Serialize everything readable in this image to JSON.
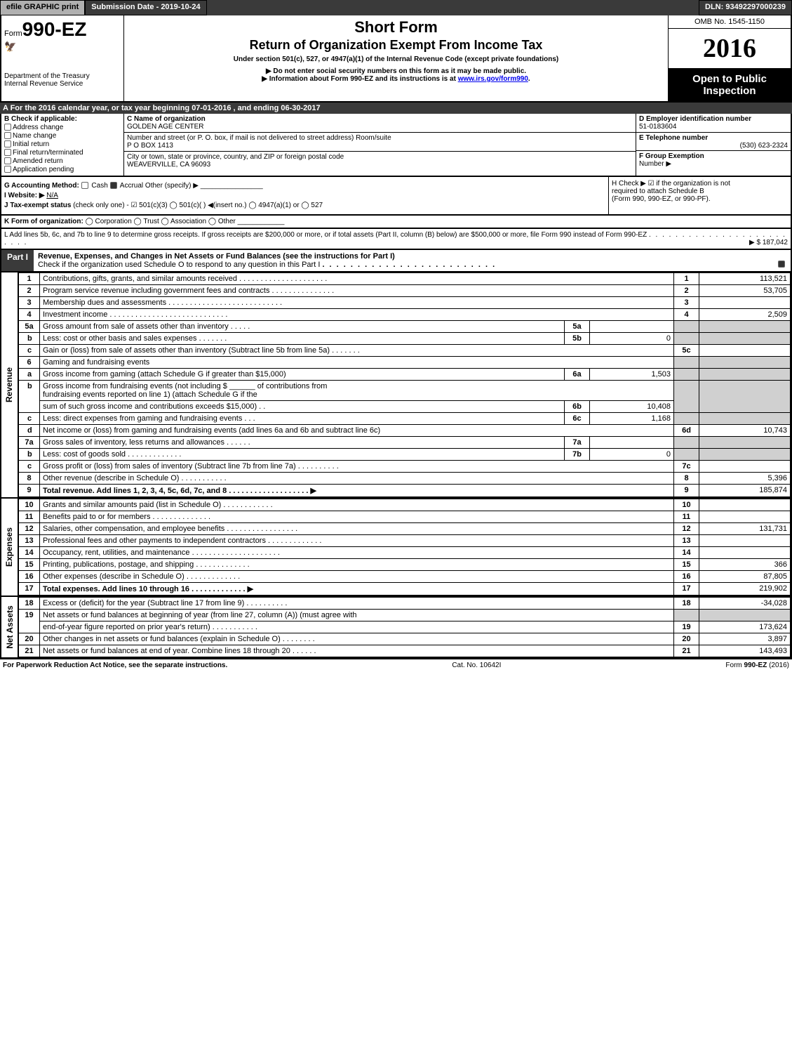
{
  "top": {
    "efile": "efile GRAPHIC print",
    "submission": "Submission Date - 2019-10-24",
    "dln": "DLN: 93492297000239"
  },
  "header": {
    "form_prefix": "Form",
    "form_no": "990-EZ",
    "dept1": "Department of the Treasury",
    "dept2": "Internal Revenue Service",
    "title1": "Short Form",
    "title2": "Return of Organization Exempt From Income Tax",
    "sub": "Under section 501(c), 527, or 4947(a)(1) of the Internal Revenue Code (except private foundations)",
    "note1": "▶ Do not enter social security numbers on this form as it may be made public.",
    "note2_pre": "▶ Information about Form 990-EZ and its instructions is at ",
    "note2_link": "www.irs.gov/form990",
    "omb": "OMB No. 1545-1150",
    "year": "2016",
    "open1": "Open to Public",
    "open2": "Inspection"
  },
  "sectionA": "A For the 2016 calendar year, or tax year beginning 07-01-2016 , and ending 06-30-2017",
  "B": {
    "label": "B Check if applicable:",
    "items": [
      "Address change",
      "Name change",
      "Initial return",
      "Final return/terminated",
      "Amended return",
      "Application pending"
    ]
  },
  "C": {
    "name_label": "C Name of organization",
    "name": "GOLDEN AGE CENTER",
    "street_label": "Number and street (or P. O. box, if mail is not delivered to street address)   Room/suite",
    "street": "P O BOX 1413",
    "city_label": "City or town, state or province, country, and ZIP or foreign postal code",
    "city": "WEAVERVILLE, CA  96093"
  },
  "D": {
    "label": "D Employer identification number",
    "value": "51-0183604"
  },
  "E": {
    "label": "E Telephone number",
    "value": "(530) 623-2324"
  },
  "F": {
    "label": "F Group Exemption",
    "label2": "Number ▶"
  },
  "G": {
    "label": "G Accounting Method:",
    "cash": "Cash",
    "accrual": "Accrual",
    "other": "Other (specify) ▶"
  },
  "I": {
    "label": "I Website: ▶",
    "value": "N/A"
  },
  "J": {
    "label": "J Tax-exempt status",
    "text": "(check only one) -  ☑ 501(c)(3)  ◯ 501(c)( ) ◀(insert no.)  ◯ 4947(a)(1) or  ◯ 527"
  },
  "H": {
    "line1": "H  Check ▶  ☑  if the organization is not",
    "line2": "required to attach Schedule B",
    "line3": "(Form 990, 990-EZ, or 990-PF)."
  },
  "K": {
    "label": "K Form of organization:",
    "text": " ◯ Corporation  ◯ Trust  ◯ Association  ◯ Other"
  },
  "L": {
    "text": "L Add lines 5b, 6c, and 7b to line 9 to determine gross receipts. If gross receipts are $200,000 or more, or if total assets (Part II, column (B) below) are $500,000 or more, file Form 990 instead of Form 990-EZ",
    "amount": "▶ $ 187,042"
  },
  "part1": {
    "tag": "Part I",
    "title": "Revenue, Expenses, and Changes in Net Assets or Fund Balances (see the instructions for Part I)",
    "sub": "Check if the organization used Schedule O to respond to any question in this Part I"
  },
  "sides": {
    "rev": "Revenue",
    "exp": "Expenses",
    "net": "Net Assets"
  },
  "lines": {
    "1": {
      "desc": "Contributions, gifts, grants, and similar amounts received . . . . . . . . . . . . . . . . . . . . .",
      "val": "113,521"
    },
    "2": {
      "desc": "Program service revenue including government fees and contracts . . . . . . . . . . . . . . .",
      "val": "53,705"
    },
    "3": {
      "desc": "Membership dues and assessments . . . . . . . . . . . . . . . . . . . . . . . . . . .",
      "val": ""
    },
    "4": {
      "desc": "Investment income . . . . . . . . . . . . . . . . . . . . . . . . . . . .",
      "val": "2,509"
    },
    "5a": {
      "desc": "Gross amount from sale of assets other than inventory . . . . .",
      "inval": ""
    },
    "5b": {
      "desc": "Less: cost or other basis and sales expenses . . . . . . .",
      "inval": "0"
    },
    "5c": {
      "desc": "Gain or (loss) from sale of assets other than inventory (Subtract line 5b from line 5a) . . . . . . .",
      "val": ""
    },
    "6": {
      "desc": "Gaming and fundraising events"
    },
    "6a": {
      "desc": "Gross income from gaming (attach Schedule G if greater than $15,000)",
      "inval": "1,503"
    },
    "6b": {
      "desc1": "Gross income from fundraising events (not including $",
      "desc2": "of contributions from",
      "desc3": "fundraising events reported on line 1) (attach Schedule G if the",
      "desc4": "sum of such gross income and contributions exceeds $15,000)   .   .",
      "inval": "10,408"
    },
    "6c": {
      "desc": "Less: direct expenses from gaming and fundraising events    .   .   .",
      "inval": "1,168"
    },
    "6d": {
      "desc": "Net income or (loss) from gaming and fundraising events (add lines 6a and 6b and subtract line 6c)",
      "val": "10,743"
    },
    "7a": {
      "desc": "Gross sales of inventory, less returns and allowances . . . . . .",
      "inval": ""
    },
    "7b": {
      "desc": "Less: cost of goods sold     .   .   .   .   .   .   .   .   .   .   .   .   .",
      "inval": "0"
    },
    "7c": {
      "desc": "Gross profit or (loss) from sales of inventory (Subtract line 7b from line 7a) . . . . . . . . . .",
      "val": ""
    },
    "8": {
      "desc": "Other revenue (describe in Schedule O)         .   .   .   .   .   .   .   .   .   .   .",
      "val": "5,396"
    },
    "9": {
      "desc": "Total revenue. Add lines 1, 2, 3, 4, 5c, 6d, 7c, and 8 . . . . . . . . . . . . . . . . . . . ▶",
      "val": "185,874"
    },
    "10": {
      "desc": "Grants and similar amounts paid (list in Schedule O)      .   .   .   .   .   .   .   .   .   .   .   .",
      "val": ""
    },
    "11": {
      "desc": "Benefits paid to or for members        .   .   .   .   .   .   .   .   .   .   .   .   .   .",
      "val": ""
    },
    "12": {
      "desc": "Salaries, other compensation, and employee benefits . . . . . . . . . . . . . . . . .",
      "val": "131,731"
    },
    "13": {
      "desc": "Professional fees and other payments to independent contractors . . . . . . . . . . . . .",
      "val": ""
    },
    "14": {
      "desc": "Occupancy, rent, utilities, and maintenance . . . . . . . . . . . . . . . . . . . . .",
      "val": ""
    },
    "15": {
      "desc": "Printing, publications, postage, and shipping       .   .   .   .   .   .   .   .   .   .   .   .   .",
      "val": "366"
    },
    "16": {
      "desc": "Other expenses (describe in Schedule O)       .   .   .   .   .   .   .   .   .   .   .   .   .",
      "val": "87,805"
    },
    "17": {
      "desc": "Total expenses. Add lines 10 through 16       .   .   .   .   .   .   .   .   .   .   .   .   .   ▶",
      "val": "219,902"
    },
    "18": {
      "desc": "Excess or (deficit) for the year (Subtract line 17 from line 9)     .   .   .   .   .   .   .   .   .   .",
      "val": "-34,028"
    },
    "19": {
      "desc1": "Net assets or fund balances at beginning of year (from line 27, column (A)) (must agree with",
      "desc2": "end-of-year figure reported on prior year's return)      .   .   .   .   .   .   .   .   .   .   .",
      "val": "173,624"
    },
    "20": {
      "desc": "Other changes in net assets or fund balances (explain in Schedule O)    .   .   .   .   .   .   .   .",
      "val": "3,897"
    },
    "21": {
      "desc": "Net assets or fund balances at end of year. Combine lines 18 through 20    .   .   .   .   .   .",
      "val": "143,493"
    }
  },
  "footer": {
    "left": "For Paperwork Reduction Act Notice, see the separate instructions.",
    "mid": "Cat. No. 10642I",
    "right": "Form 990-EZ (2016)"
  },
  "colors": {
    "dark_bg": "#3a3a3a",
    "gray_btn": "#b0b0b0",
    "shade": "#d0d0d0",
    "link": "#0000ee"
  }
}
